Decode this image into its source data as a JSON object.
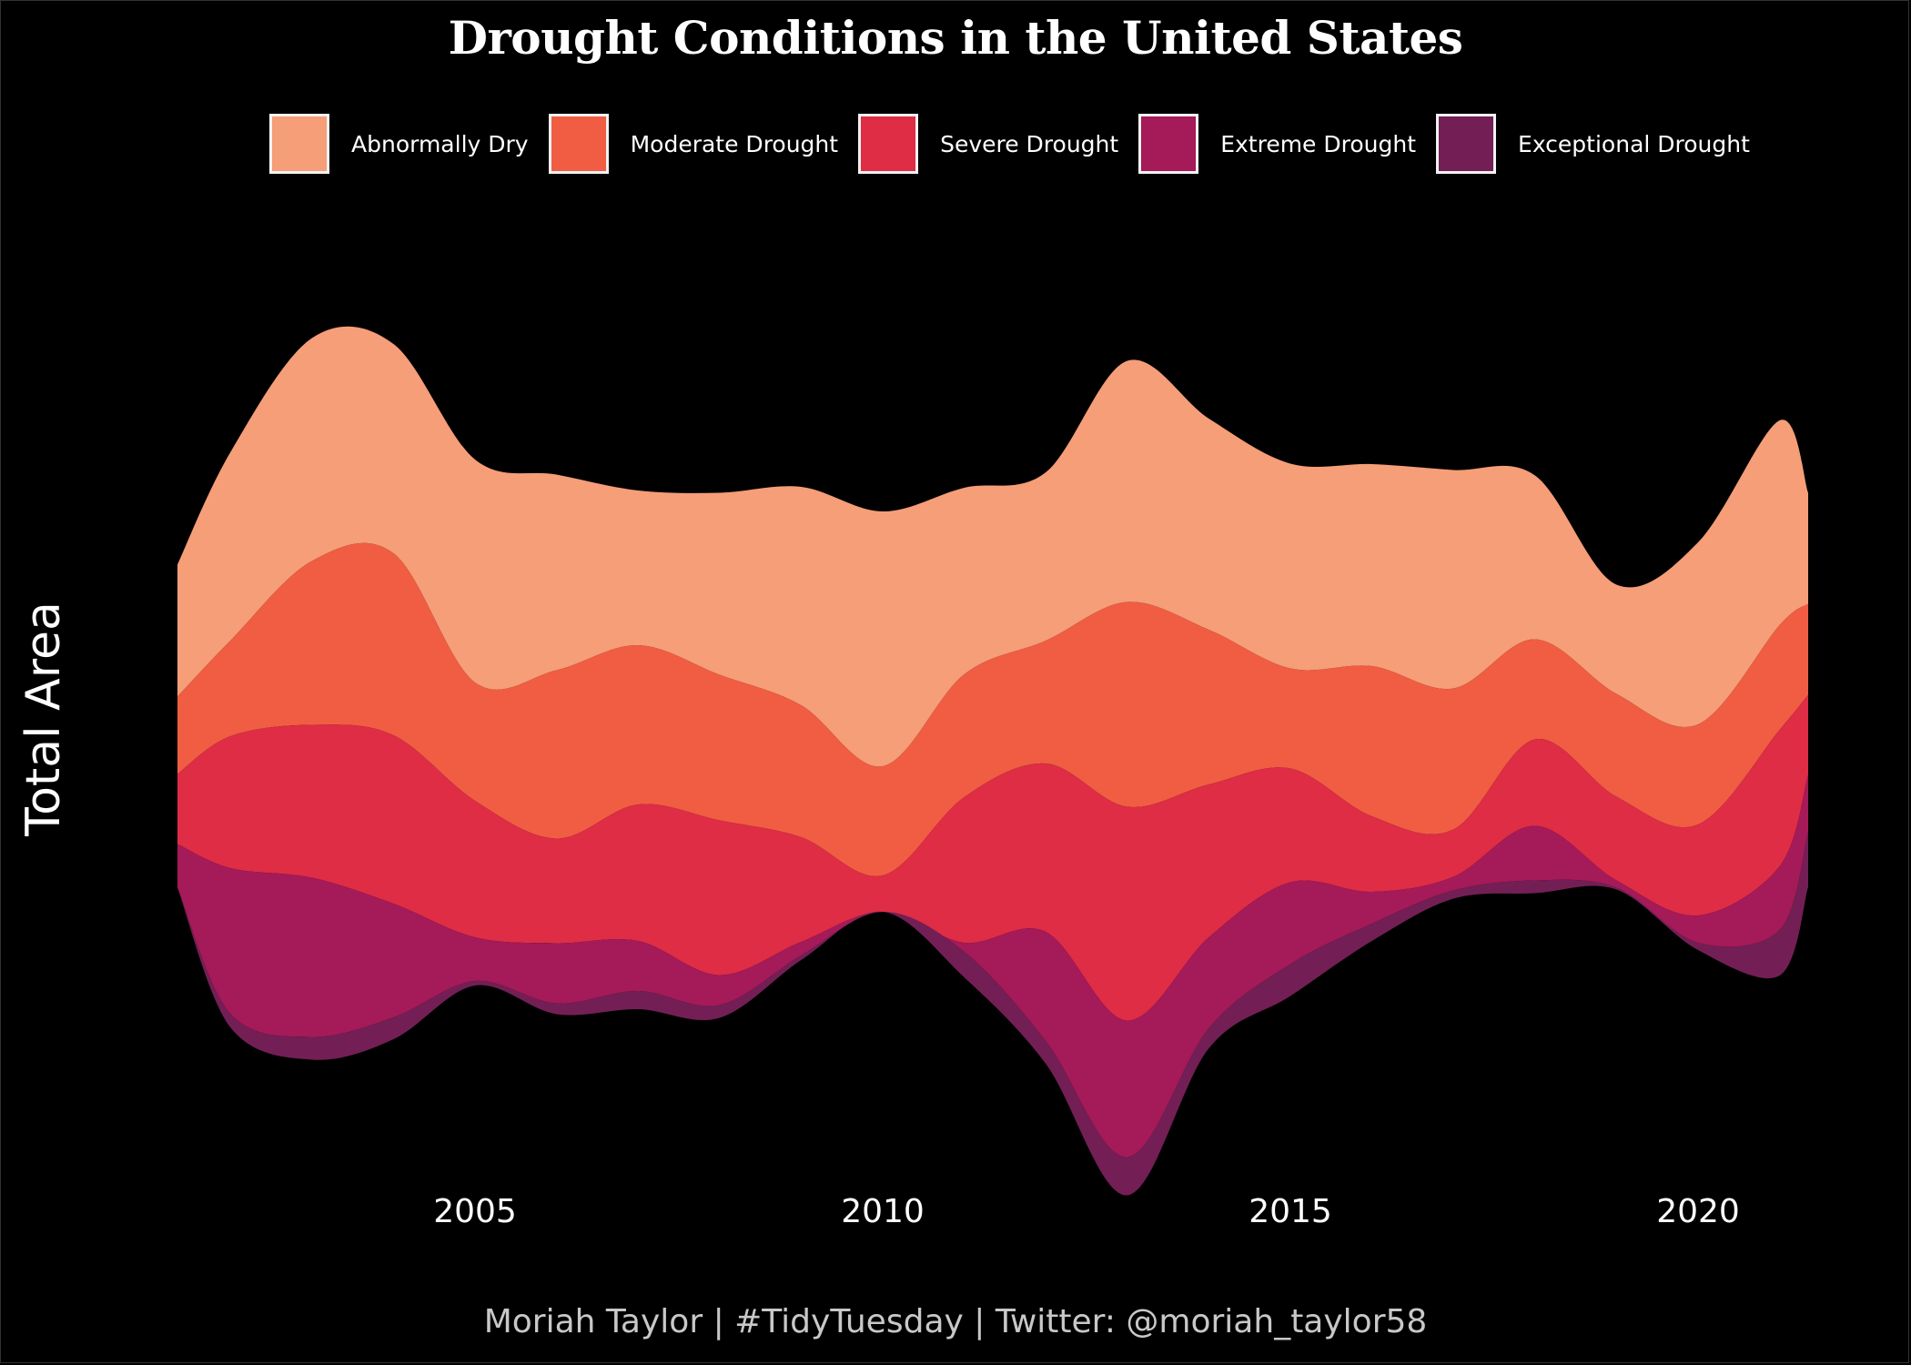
{
  "chart_data": {
    "type": "area",
    "variant": "streamgraph",
    "title": "Drought Conditions in the United States",
    "xlabel": "",
    "ylabel": "Total Area",
    "caption": "Moriah Taylor | #TidyTuesday | Twitter: @moriah_taylor58",
    "legend_position": "top",
    "grid": false,
    "x_ticks": [
      2005,
      2010,
      2015,
      2020
    ],
    "x_tick_labels": [
      "2005",
      "2010",
      "2015",
      "2020"
    ],
    "xlim": [
      2001.35,
      2021.35
    ],
    "y_units": "relative area (unlabelled)",
    "x": [
      2001.35,
      2002,
      2003,
      2004,
      2005,
      2006,
      2007,
      2008,
      2009,
      2010,
      2011,
      2012,
      2013,
      2014,
      2015,
      2016,
      2017,
      2018,
      2019,
      2020,
      2021,
      2021.35
    ],
    "center": [
      798,
      813,
      768,
      760,
      794,
      818,
      824,
      830,
      795,
      782,
      805,
      844,
      855,
      806,
      802,
      772,
      752,
      752,
      810,
      820,
      767,
      758
    ],
    "series": [
      {
        "name": "Abnormally Dry",
        "color": "#F59E78",
        "values": [
          145,
          207,
          245,
          230,
          245,
          215,
          170,
          200,
          240,
          280,
          205,
          185,
          265,
          232,
          225,
          222,
          240,
          180,
          120,
          200,
          225,
          122
        ]
      },
      {
        "name": "Moderate Drought",
        "color": "#F05D43",
        "values": [
          85,
          105,
          180,
          200,
          130,
          185,
          175,
          160,
          145,
          120,
          135,
          135,
          225,
          170,
          110,
          165,
          155,
          110,
          113,
          110,
          115,
          100
        ]
      },
      {
        "name": "Severe Drought",
        "color": "#DE2D45",
        "values": [
          77,
          145,
          168,
          185,
          150,
          115,
          150,
          170,
          115,
          40,
          160,
          185,
          235,
          168,
          125,
          83,
          52,
          95,
          92,
          100,
          150,
          88
        ]
      },
      {
        "name": "Extreme Drought",
        "color": "#A51A58",
        "values": [
          48,
          160,
          175,
          125,
          48,
          66,
          55,
          33,
          15,
          0,
          10,
          120,
          150,
          100,
          90,
          35,
          15,
          60,
          8,
          30,
          70,
          63
        ]
      },
      {
        "name": "Exceptional Drought",
        "color": "#731F55",
        "values": [
          0,
          15,
          25,
          24,
          5,
          12,
          20,
          14,
          5,
          0,
          28,
          25,
          42,
          22,
          35,
          19,
          9,
          14,
          2,
          8,
          50,
          60
        ]
      }
    ]
  },
  "title": "Drought Conditions in the United States",
  "legend": [
    {
      "label": "Abnormally Dry",
      "color": "#F59E78"
    },
    {
      "label": "Moderate Drought",
      "color": "#F05D43"
    },
    {
      "label": "Severe Drought",
      "color": "#DE2D45"
    },
    {
      "label": "Extreme Drought",
      "color": "#A51A58"
    },
    {
      "label": "Exceptional Drought",
      "color": "#731F55"
    }
  ],
  "ylabel": "Total Area",
  "caption": "Moriah Taylor | #TidyTuesday | Twitter: @moriah_taylor58"
}
